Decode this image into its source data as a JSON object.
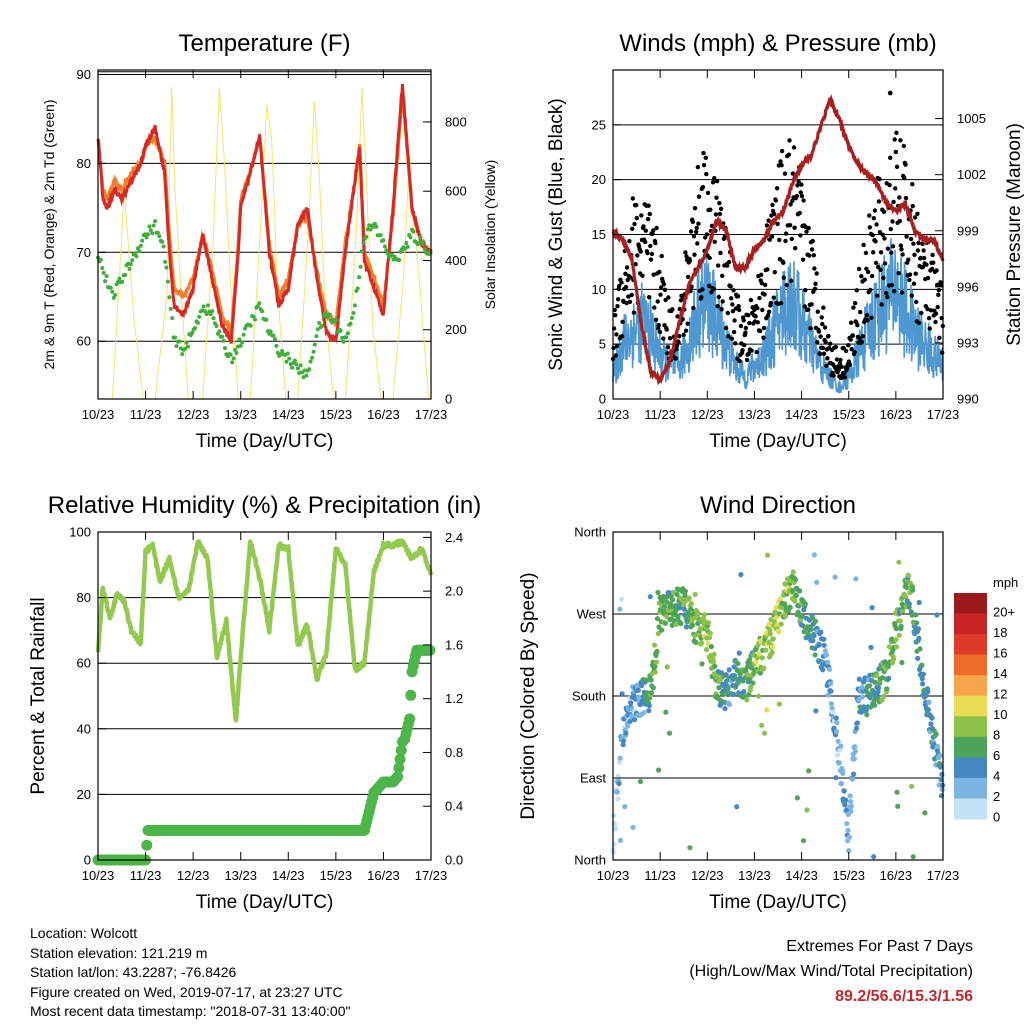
{
  "panels": {
    "temperature": {
      "title": "Temperature (F)",
      "xlabel": "Time (Day/UTC)",
      "ylabel_left": "2m & 9m T (Red, Orange) & 2m Td (Green)",
      "ylabel_right": "Solar Insolation (Yellow)"
    },
    "winds": {
      "title": "Winds (mph) & Pressure (mb)",
      "xlabel": "Time (Day/UTC)",
      "ylabel_left": "Sonic Wind & Gust (Blue, Black)",
      "ylabel_right": "Station Pressure (Maroon)"
    },
    "humidity": {
      "title": "Relative Humidity (%) & Precipitation (in)",
      "xlabel": "Time (Day/UTC)",
      "ylabel_left": "Percent & Total Rainfall"
    },
    "direction": {
      "title": "Wind Direction",
      "xlabel": "Time (Day/UTC)",
      "ylabel_left": "Direction (Colored By Speed)",
      "colorbar_title": "mph"
    }
  },
  "info": {
    "location": "Location: Wolcott",
    "elevation": "Station elevation: 121.219 m",
    "latlon": "Station lat/lon: 43.2287; -76.8426",
    "created": "Figure created on Wed, 2019-07-17, at 23:27 UTC",
    "recent": "Most recent data timestamp: \"2018-07-31 13:40:00\""
  },
  "extremes": {
    "line1": "Extremes For Past 7 Days",
    "line2": "(High/Low/Max Wind/Total Precipitation)",
    "values": "89.2/56.6/15.3/1.56"
  },
  "colors": {
    "temp_2m": "#d42a26",
    "temp_9m": "#f07f2a",
    "dewpoint": "#3fae3b",
    "solar": "#f7e36a",
    "wind": "#4e97d1",
    "gust": "#000000",
    "pressure": "#a71f1f",
    "rh": "#93c94f",
    "precip": "#4db549"
  },
  "chart_data": [
    {
      "type": "line",
      "id": "temperature",
      "x_ticks": [
        "10/23",
        "11/23",
        "12/23",
        "13/23",
        "14/23",
        "15/23",
        "16/23",
        "17/23"
      ],
      "ylim": [
        53.5,
        90.5
      ],
      "yticks": [
        60,
        70,
        80,
        90
      ],
      "y2lim": [
        0,
        950
      ],
      "y2ticks": [
        0,
        200,
        400,
        600,
        800
      ],
      "grid": true,
      "series": [
        {
          "key": "t2m",
          "axis": "left",
          "x": [
            0,
            0.05,
            0.1,
            0.2,
            0.35,
            0.5,
            0.7,
            0.9,
            1.0,
            1.2,
            1.4,
            1.5,
            1.6,
            1.8,
            2.0,
            2.2,
            2.4,
            2.6,
            2.8,
            2.95,
            3.0,
            3.2,
            3.4,
            3.6,
            3.8,
            4.0,
            4.2,
            4.4,
            4.6,
            4.8,
            5.0,
            5.2,
            5.4,
            5.5,
            5.6,
            5.8,
            6.0,
            6.2,
            6.4,
            6.6,
            6.8,
            7.0
          ],
          "values": [
            83,
            80,
            76,
            75,
            77,
            76,
            78,
            80,
            82,
            84,
            79,
            70,
            64,
            63,
            66,
            72,
            67,
            62,
            60,
            70,
            75,
            79,
            83,
            70,
            64,
            66,
            73,
            75,
            67,
            61,
            60,
            70,
            78,
            82,
            69,
            66,
            63,
            75,
            89,
            75,
            71,
            70
          ]
        },
        {
          "key": "t9m",
          "axis": "left",
          "x": [
            0,
            0.05,
            0.1,
            0.2,
            0.35,
            0.5,
            0.7,
            0.9,
            1.0,
            1.2,
            1.4,
            1.5,
            1.6,
            1.8,
            2.0,
            2.2,
            2.4,
            2.6,
            2.8,
            2.95,
            3.0,
            3.2,
            3.4,
            3.6,
            3.8,
            4.0,
            4.2,
            4.4,
            4.6,
            4.8,
            5.0,
            5.2,
            5.4,
            5.5,
            5.6,
            5.8,
            6.0,
            6.2,
            6.4,
            6.6,
            6.8,
            7.0
          ],
          "values": [
            83,
            80,
            77,
            76,
            78,
            77,
            79,
            80,
            82,
            83,
            80,
            72,
            66,
            65,
            67,
            72,
            68,
            63,
            61,
            71,
            76,
            79,
            83,
            71,
            65,
            67,
            73,
            74,
            68,
            63,
            62,
            71,
            78,
            82,
            70,
            67,
            64,
            74,
            88,
            75,
            71,
            70
          ]
        },
        {
          "key": "td",
          "axis": "left",
          "x": [
            0,
            0.1,
            0.3,
            0.6,
            0.9,
            1.0,
            1.2,
            1.4,
            1.6,
            1.8,
            2.0,
            2.2,
            2.4,
            2.6,
            2.8,
            3.0,
            3.2,
            3.4,
            3.6,
            3.8,
            4.0,
            4.2,
            4.4,
            4.6,
            4.8,
            5.0,
            5.2,
            5.4,
            5.6,
            5.8,
            6.0,
            6.2,
            6.4,
            6.6,
            6.8,
            7.0
          ],
          "values": [
            70,
            68,
            65,
            68,
            71,
            72,
            73,
            70,
            60,
            59,
            61,
            64,
            63,
            60,
            58,
            60,
            62,
            64,
            61,
            59,
            58,
            57,
            56,
            61,
            63,
            62,
            60,
            64,
            72,
            73,
            71,
            69,
            70,
            72,
            71,
            70
          ]
        },
        {
          "key": "solar",
          "axis": "right",
          "x": [
            0,
            0.3,
            0.45,
            0.55,
            0.62,
            0.75,
            0.95,
            1.2,
            1.45,
            1.55,
            1.62,
            1.75,
            1.9,
            2.2,
            2.42,
            2.55,
            2.65,
            2.8,
            2.95,
            3.2,
            3.42,
            3.55,
            3.65,
            3.78,
            3.95,
            4.2,
            4.42,
            4.55,
            4.65,
            4.78,
            4.95,
            5.2,
            5.42,
            5.55,
            5.65,
            5.78,
            5.95,
            6.2,
            6.42,
            6.55,
            6.65,
            6.78,
            6.95,
            7.0
          ],
          "values": [
            0,
            0,
            350,
            600,
            480,
            240,
            0,
            0,
            300,
            900,
            600,
            300,
            0,
            0,
            450,
            900,
            700,
            300,
            0,
            0,
            500,
            850,
            750,
            300,
            0,
            0,
            480,
            860,
            650,
            250,
            0,
            0,
            450,
            900,
            600,
            200,
            0,
            0,
            350,
            700,
            500,
            300,
            0,
            0
          ]
        }
      ]
    },
    {
      "type": "line",
      "id": "winds",
      "x_ticks": [
        "10/23",
        "11/23",
        "12/23",
        "13/23",
        "14/23",
        "15/23",
        "16/23",
        "17/23"
      ],
      "ylim": [
        0,
        30
      ],
      "yticks": [
        0,
        5,
        10,
        15,
        20,
        25
      ],
      "y2lim": [
        990,
        1007.6
      ],
      "y2ticks": [
        990,
        993,
        996,
        999,
        1002,
        1005
      ],
      "grid": true,
      "series": [
        {
          "key": "wind",
          "axis": "left",
          "x": [
            0,
            0.2,
            0.4,
            0.6,
            0.8,
            1.0,
            1.2,
            1.4,
            1.6,
            1.8,
            2.0,
            2.2,
            2.4,
            2.6,
            2.8,
            3.0,
            3.2,
            3.4,
            3.6,
            3.8,
            4.0,
            4.2,
            4.4,
            4.6,
            4.8,
            5.0,
            5.2,
            5.4,
            5.6,
            5.8,
            6.0,
            6.2,
            6.4,
            6.6,
            6.8,
            7.0
          ],
          "values": [
            2,
            5,
            6,
            7,
            6,
            4,
            3,
            3,
            5,
            8,
            9,
            7,
            5,
            3,
            2,
            3,
            4,
            6,
            8,
            9,
            7,
            5,
            3,
            2,
            1,
            2,
            4,
            6,
            8,
            9,
            10,
            8,
            6,
            5,
            4,
            3
          ]
        },
        {
          "key": "gust",
          "axis": "left",
          "x": [
            0,
            0.2,
            0.4,
            0.6,
            0.8,
            1.0,
            1.2,
            1.4,
            1.6,
            1.8,
            2.0,
            2.2,
            2.4,
            2.6,
            2.8,
            3.0,
            3.2,
            3.4,
            3.6,
            3.8,
            4.0,
            4.2,
            4.4,
            4.6,
            4.8,
            5.0,
            5.2,
            5.4,
            5.6,
            5.8,
            6.0,
            6.2,
            6.4,
            6.6,
            6.8,
            7.0
          ],
          "values": [
            5,
            10,
            13,
            14,
            12,
            10,
            6,
            6,
            11,
            16,
            17,
            14,
            11,
            7,
            5,
            7,
            10,
            13,
            16,
            17,
            14,
            11,
            7,
            4,
            3,
            4,
            8,
            11,
            14,
            15,
            17,
            16,
            13,
            11,
            9,
            7
          ]
        },
        {
          "key": "pressure",
          "axis": "right",
          "x": [
            0,
            0.2,
            0.4,
            0.6,
            0.8,
            1.0,
            1.2,
            1.4,
            1.6,
            1.8,
            2.0,
            2.2,
            2.4,
            2.6,
            2.8,
            3.0,
            3.2,
            3.4,
            3.6,
            3.8,
            4.0,
            4.2,
            4.4,
            4.6,
            4.8,
            5.0,
            5.2,
            5.4,
            5.6,
            5.8,
            6.0,
            6.2,
            6.4,
            6.6,
            6.8,
            7.0
          ],
          "values": [
            999,
            998.5,
            997.5,
            994,
            991.5,
            991,
            992,
            994,
            996,
            997,
            998,
            999.5,
            999,
            997,
            997,
            998,
            998.5,
            999.5,
            1000,
            1001.5,
            1002.5,
            1003,
            1004.5,
            1006,
            1005,
            1003.5,
            1002.5,
            1002,
            1001.5,
            1000.5,
            1000,
            1000.5,
            999,
            998.5,
            998.5,
            997.5
          ]
        }
      ]
    },
    {
      "type": "line",
      "id": "humidity",
      "x_ticks": [
        "10/23",
        "11/23",
        "12/23",
        "13/23",
        "14/23",
        "15/23",
        "16/23",
        "17/23"
      ],
      "ylim": [
        0,
        100
      ],
      "yticks": [
        0,
        20,
        40,
        60,
        80,
        100
      ],
      "y2lim": [
        0,
        2.44
      ],
      "y2ticks": [
        0.0,
        0.4,
        0.8,
        1.2,
        1.6,
        2.0,
        2.4
      ],
      "grid": true,
      "series": [
        {
          "key": "rh",
          "axis": "left",
          "x": [
            0,
            0.1,
            0.25,
            0.4,
            0.55,
            0.7,
            0.9,
            1.0,
            1.15,
            1.3,
            1.5,
            1.7,
            1.9,
            2.1,
            2.3,
            2.5,
            2.7,
            2.9,
            3.0,
            3.2,
            3.4,
            3.6,
            3.8,
            4.0,
            4.2,
            4.4,
            4.6,
            4.8,
            5.0,
            5.2,
            5.4,
            5.6,
            5.8,
            6.0,
            6.2,
            6.4,
            6.6,
            6.8,
            7.0
          ],
          "values": [
            63,
            83,
            74,
            81,
            79,
            70,
            66,
            94,
            96,
            85,
            92,
            80,
            82,
            97,
            92,
            62,
            73,
            42,
            62,
            97,
            86,
            70,
            96,
            95,
            65,
            72,
            55,
            63,
            95,
            90,
            58,
            60,
            88,
            96,
            96,
            97,
            92,
            95,
            87
          ]
        },
        {
          "key": "precip",
          "axis": "right",
          "x": [
            0,
            1.0,
            1.05,
            5.6,
            5.8,
            6.0,
            6.2,
            6.3,
            6.4,
            6.45,
            6.55,
            6.6,
            6.7,
            7.0
          ],
          "values": [
            0,
            0,
            0.22,
            0.22,
            0.5,
            0.58,
            0.58,
            0.62,
            0.88,
            0.9,
            1.05,
            1.4,
            1.56,
            1.56
          ]
        }
      ]
    },
    {
      "type": "scatter",
      "id": "direction",
      "x_ticks": [
        "10/23",
        "11/23",
        "12/23",
        "13/23",
        "14/23",
        "15/23",
        "16/23",
        "17/23"
      ],
      "yticks": [
        "North",
        "East",
        "South",
        "West",
        "North"
      ],
      "ylim": [
        0,
        360
      ],
      "grid": true,
      "colorbar": {
        "labels": [
          "20+",
          "18",
          "16",
          "14",
          "12",
          "10",
          "8",
          "6",
          "4",
          "2",
          "0"
        ],
        "colors": [
          "#9b1b1d",
          "#c92525",
          "#dd3a2a",
          "#ee6b2c",
          "#f6a54a",
          "#e8dd55",
          "#8cc24a",
          "#4ea55a",
          "#4588c2",
          "#7bb6e2",
          "#c2e2f5"
        ]
      }
    }
  ]
}
